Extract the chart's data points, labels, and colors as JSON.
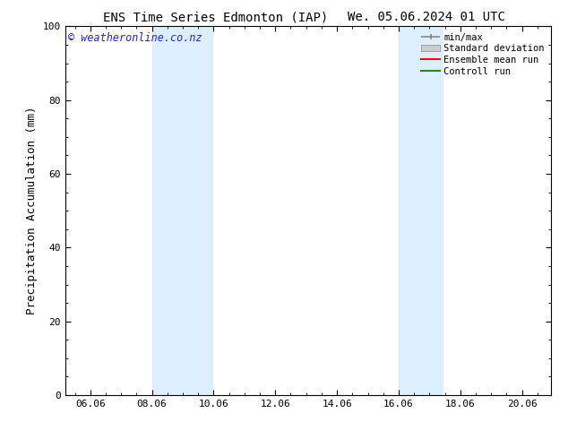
{
  "title_left": "ENS Time Series Edmonton (IAP)",
  "title_right": "We. 05.06.2024 01 UTC",
  "ylabel": "Precipitation Accumulation (mm)",
  "watermark": "© weatheronline.co.nz",
  "xlim": [
    5.25,
    21.0
  ],
  "ylim": [
    0,
    100
  ],
  "xtick_positions": [
    6.06,
    8.06,
    10.06,
    12.06,
    14.06,
    16.06,
    18.06,
    20.06
  ],
  "xtick_labels": [
    "06.06",
    "08.06",
    "10.06",
    "12.06",
    "14.06",
    "16.06",
    "18.06",
    "20.06"
  ],
  "yticks": [
    0,
    20,
    40,
    60,
    80,
    100
  ],
  "shaded_bands": [
    {
      "x_start": 8.06,
      "x_end": 10.06
    },
    {
      "x_start": 16.06,
      "x_end": 17.5
    }
  ],
  "shade_color": "#ddeeff",
  "background_color": "#ffffff",
  "legend_labels": [
    "min/max",
    "Standard deviation",
    "Ensemble mean run",
    "Controll run"
  ],
  "legend_colors_line": [
    "#aaaaaa",
    "#cccccc",
    "#ff0000",
    "#228822"
  ],
  "title_fontsize": 10,
  "tick_fontsize": 8,
  "ylabel_fontsize": 9,
  "watermark_color": "#2222cc",
  "border_color": "#000000"
}
